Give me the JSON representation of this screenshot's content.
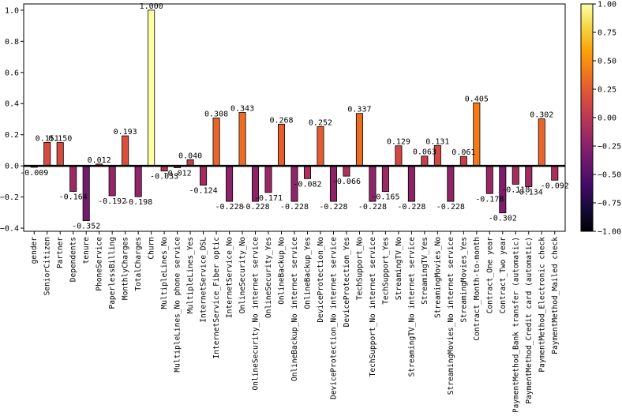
{
  "chart_data": {
    "type": "bar",
    "categories": [
      "gender",
      "SeniorCitizen",
      "Partner",
      "Dependents",
      "tenure",
      "PhoneService",
      "PaperlessBilling",
      "MonthlyCharges",
      "TotalCharges",
      "Churn",
      "MultipleLines_No",
      "MultipleLines_No phone service",
      "MultipleLines_Yes",
      "InternetService_DSL",
      "InternetService_Fiber optic",
      "InternetService_No",
      "OnlineSecurity_No",
      "OnlineSecurity_No internet service",
      "OnlineSecurity_Yes",
      "OnlineBackup_No",
      "OnlineBackup_No internet service",
      "OnlineBackup_Yes",
      "DeviceProtection_No",
      "DeviceProtection_No internet service",
      "DeviceProtection_Yes",
      "TechSupport_No",
      "TechSupport_No internet service",
      "TechSupport_Yes",
      "StreamingTV_No",
      "StreamingTV_No internet service",
      "StreamingTV_Yes",
      "StreamingMovies_No",
      "StreamingMovies_No internet service",
      "StreamingMovies_Yes",
      "Contract_Month-to-month",
      "Contract_One year",
      "Contract_Two year",
      "PaymentMethod_Bank transfer (automatic)",
      "PaymentMethod_Credit card (automatic)",
      "PaymentMethod_Electronic check",
      "PaymentMethod_Mailed check"
    ],
    "values": [
      -0.009,
      0.151,
      0.15,
      -0.164,
      -0.352,
      0.012,
      -0.192,
      0.193,
      -0.198,
      1.0,
      -0.033,
      -0.012,
      0.04,
      -0.124,
      0.308,
      -0.228,
      0.343,
      -0.228,
      -0.171,
      0.268,
      -0.228,
      -0.082,
      0.252,
      -0.228,
      -0.066,
      0.337,
      -0.228,
      -0.165,
      0.129,
      -0.228,
      0.063,
      0.131,
      -0.228,
      0.061,
      0.405,
      -0.178,
      -0.302,
      -0.118,
      -0.134,
      0.302,
      -0.092
    ],
    "labels": [
      "-0.009",
      "0.151",
      "0.150",
      "-0.164",
      "-0.352",
      "0.012",
      "-0.192",
      "0.193",
      "-0.198",
      "1.000",
      "-0.033",
      "-0.012",
      "0.040",
      "-0.124",
      "0.308",
      "-0.228",
      "0.343",
      "-0.228",
      "-0.171",
      "0.268",
      "-0.228",
      "-0.082",
      "0.252",
      "-0.228",
      "-0.066",
      "0.337",
      "-0.228",
      "-0.165",
      "0.129",
      "-0.228",
      "0.063",
      "0.131",
      "-0.228",
      "0.061",
      "0.405",
      "-0.178",
      "-0.302",
      "-0.118",
      "-0.134",
      "0.302",
      "-0.092"
    ],
    "ylim": [
      -0.42,
      1.04
    ],
    "yticks": [
      -0.4,
      -0.2,
      0.0,
      0.2,
      0.4,
      0.6,
      0.8,
      1.0
    ],
    "ytick_labels": [
      "−0.4",
      "−0.2",
      "0.0",
      "0.2",
      "0.4",
      "0.6",
      "0.8",
      "1.0"
    ],
    "colorbar": {
      "colormap": "inferno",
      "range": [
        -1.0,
        1.0
      ],
      "ticks": [
        1.0,
        0.75,
        0.5,
        0.25,
        0.0,
        -0.25,
        -0.5,
        -0.75,
        -1.0
      ],
      "tick_labels": [
        "1.00",
        "0.75",
        "0.50",
        "0.25",
        "0.00",
        "−0.25",
        "−0.50",
        "−0.75",
        "−1.00"
      ]
    },
    "zero_line": true,
    "grid": false,
    "legend": "none",
    "title": "",
    "xlabel": "",
    "ylabel": ""
  }
}
